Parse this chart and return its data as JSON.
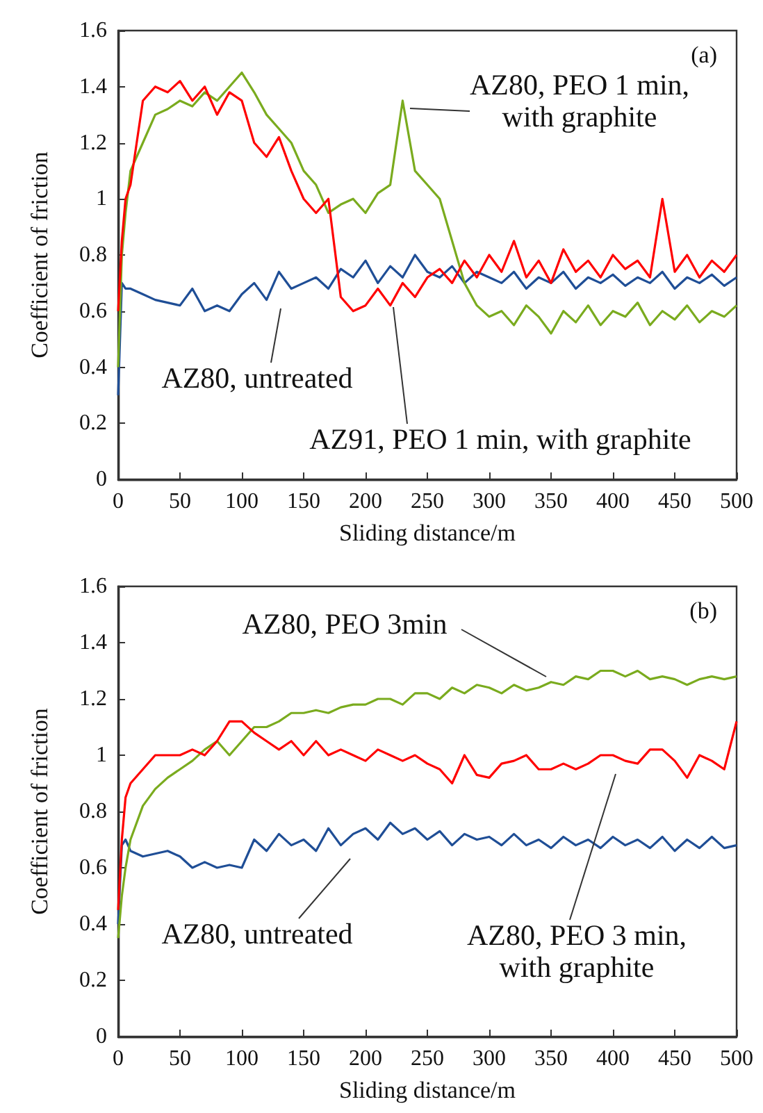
{
  "chart_data": [
    {
      "type": "line",
      "title": "(a)",
      "xlabel": "Sliding distance/m",
      "ylabel": "Coefficient of friction",
      "x": [
        0,
        3,
        6,
        10,
        20,
        30,
        40,
        50,
        60,
        70,
        80,
        90,
        100,
        110,
        120,
        130,
        140,
        150,
        160,
        170,
        180,
        190,
        200,
        210,
        220,
        230,
        240,
        250,
        260,
        270,
        280,
        290,
        300,
        310,
        320,
        330,
        340,
        350,
        360,
        370,
        380,
        390,
        400,
        410,
        420,
        430,
        440,
        450,
        460,
        470,
        480,
        490,
        500
      ],
      "xlim": [
        0,
        500
      ],
      "xticks": [
        0,
        50,
        100,
        150,
        200,
        250,
        300,
        350,
        400,
        450,
        500
      ],
      "ylim": [
        0,
        1.6
      ],
      "yticks": [
        0,
        0.2,
        0.4,
        0.6,
        0.8,
        1.0,
        1.2,
        1.4,
        1.6
      ],
      "series": [
        {
          "name": "AZ80, untreated",
          "color": "#1f4e96",
          "values": [
            0.3,
            0.7,
            0.68,
            0.68,
            0.66,
            0.64,
            0.63,
            0.62,
            0.68,
            0.6,
            0.62,
            0.6,
            0.66,
            0.7,
            0.64,
            0.74,
            0.68,
            0.7,
            0.72,
            0.68,
            0.75,
            0.72,
            0.78,
            0.7,
            0.76,
            0.72,
            0.8,
            0.74,
            0.72,
            0.76,
            0.7,
            0.74,
            0.72,
            0.7,
            0.74,
            0.68,
            0.72,
            0.7,
            0.74,
            0.68,
            0.72,
            0.7,
            0.73,
            0.69,
            0.72,
            0.7,
            0.74,
            0.68,
            0.72,
            0.7,
            0.73,
            0.69,
            0.72
          ]
        },
        {
          "name": "AZ80, PEO 1 min, with graphite",
          "color": "#7aab1e",
          "values": [
            0.4,
            0.8,
            0.95,
            1.1,
            1.2,
            1.3,
            1.32,
            1.35,
            1.33,
            1.38,
            1.35,
            1.4,
            1.45,
            1.38,
            1.3,
            1.25,
            1.2,
            1.1,
            1.05,
            0.95,
            0.98,
            1.0,
            0.95,
            1.02,
            1.05,
            1.35,
            1.1,
            1.05,
            1.0,
            0.85,
            0.7,
            0.62,
            0.58,
            0.6,
            0.55,
            0.62,
            0.58,
            0.52,
            0.6,
            0.56,
            0.62,
            0.55,
            0.6,
            0.58,
            0.63,
            0.55,
            0.6,
            0.57,
            0.62,
            0.56,
            0.6,
            0.58,
            0.62
          ]
        },
        {
          "name": "AZ91, PEO 1 min, with graphite",
          "color": "#ff0000",
          "values": [
            0.6,
            0.85,
            1.0,
            1.05,
            1.35,
            1.4,
            1.38,
            1.42,
            1.35,
            1.4,
            1.3,
            1.38,
            1.35,
            1.2,
            1.15,
            1.22,
            1.1,
            1.0,
            0.95,
            1.0,
            0.65,
            0.6,
            0.62,
            0.68,
            0.62,
            0.7,
            0.65,
            0.72,
            0.75,
            0.7,
            0.78,
            0.72,
            0.8,
            0.74,
            0.85,
            0.72,
            0.78,
            0.7,
            0.82,
            0.74,
            0.78,
            0.72,
            0.8,
            0.75,
            0.78,
            0.72,
            1.0,
            0.74,
            0.8,
            0.72,
            0.78,
            0.74,
            0.8
          ]
        }
      ]
    },
    {
      "type": "line",
      "title": "(b)",
      "xlabel": "Sliding distance/m",
      "ylabel": "Coefficient of friction",
      "x": [
        0,
        3,
        6,
        10,
        20,
        30,
        40,
        50,
        60,
        70,
        80,
        90,
        100,
        110,
        120,
        130,
        140,
        150,
        160,
        170,
        180,
        190,
        200,
        210,
        220,
        230,
        240,
        250,
        260,
        270,
        280,
        290,
        300,
        310,
        320,
        330,
        340,
        350,
        360,
        370,
        380,
        390,
        400,
        410,
        420,
        430,
        440,
        450,
        460,
        470,
        480,
        490,
        500
      ],
      "xlim": [
        0,
        500
      ],
      "xticks": [
        0,
        50,
        100,
        150,
        200,
        250,
        300,
        350,
        400,
        450,
        500
      ],
      "ylim": [
        0,
        1.6
      ],
      "yticks": [
        0,
        0.2,
        0.4,
        0.6,
        0.8,
        1.0,
        1.2,
        1.4,
        1.6
      ],
      "series": [
        {
          "name": "AZ80, untreated",
          "color": "#1f4e96",
          "values": [
            0.4,
            0.68,
            0.7,
            0.66,
            0.64,
            0.65,
            0.66,
            0.64,
            0.6,
            0.62,
            0.6,
            0.61,
            0.6,
            0.7,
            0.66,
            0.72,
            0.68,
            0.7,
            0.66,
            0.74,
            0.68,
            0.72,
            0.74,
            0.7,
            0.76,
            0.72,
            0.74,
            0.7,
            0.73,
            0.68,
            0.72,
            0.7,
            0.71,
            0.68,
            0.72,
            0.68,
            0.7,
            0.67,
            0.71,
            0.68,
            0.7,
            0.67,
            0.71,
            0.68,
            0.7,
            0.67,
            0.71,
            0.66,
            0.7,
            0.67,
            0.71,
            0.67,
            0.68
          ]
        },
        {
          "name": "AZ80, PEO 3min",
          "color": "#7aab1e",
          "values": [
            0.35,
            0.5,
            0.6,
            0.7,
            0.82,
            0.88,
            0.92,
            0.95,
            0.98,
            1.02,
            1.05,
            1.0,
            1.05,
            1.1,
            1.1,
            1.12,
            1.15,
            1.15,
            1.16,
            1.15,
            1.17,
            1.18,
            1.18,
            1.2,
            1.2,
            1.18,
            1.22,
            1.22,
            1.2,
            1.24,
            1.22,
            1.25,
            1.24,
            1.22,
            1.25,
            1.23,
            1.24,
            1.26,
            1.25,
            1.28,
            1.27,
            1.3,
            1.3,
            1.28,
            1.3,
            1.27,
            1.28,
            1.27,
            1.25,
            1.27,
            1.28,
            1.27,
            1.28
          ]
        },
        {
          "name": "AZ80, PEO 3 min, with graphite",
          "color": "#ff0000",
          "values": [
            0.45,
            0.7,
            0.85,
            0.9,
            0.95,
            1.0,
            1.0,
            1.0,
            1.02,
            1.0,
            1.05,
            1.12,
            1.12,
            1.08,
            1.05,
            1.02,
            1.05,
            1.0,
            1.05,
            1.0,
            1.02,
            1.0,
            0.98,
            1.02,
            1.0,
            0.98,
            1.0,
            0.97,
            0.95,
            0.9,
            1.0,
            0.93,
            0.92,
            0.97,
            0.98,
            1.0,
            0.95,
            0.95,
            0.97,
            0.95,
            0.97,
            1.0,
            1.0,
            0.98,
            0.97,
            1.02,
            1.02,
            0.98,
            0.92,
            1.0,
            0.98,
            0.95,
            1.12
          ]
        }
      ]
    }
  ]
}
